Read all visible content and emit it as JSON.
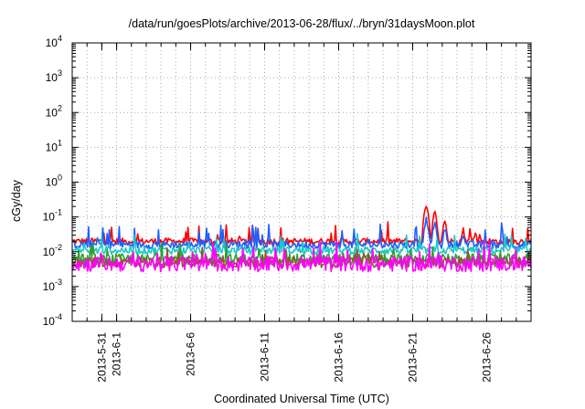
{
  "chart_data": {
    "type": "line",
    "title": "/data/run/goesPlots/archive/2013-06-28/flux/../bryn/31daysMoon.plot",
    "xlabel": "Coordinated Universal Time (UTC)",
    "ylabel": "cGy/day",
    "yscale": "log",
    "ylim": [
      0.0001,
      10000
    ],
    "xlim": [
      "2013-05-29",
      "2013-06-29"
    ],
    "grid": true,
    "legend": "none",
    "y_ticks": [
      {
        "base": "10",
        "exp": "-4",
        "value": 0.0001
      },
      {
        "base": "10",
        "exp": "-3",
        "value": 0.001
      },
      {
        "base": "10",
        "exp": "-2",
        "value": 0.01
      },
      {
        "base": "10",
        "exp": "-1",
        "value": 0.1
      },
      {
        "base": "10",
        "exp": "0",
        "value": 1
      },
      {
        "base": "10",
        "exp": "1",
        "value": 10
      },
      {
        "base": "10",
        "exp": "2",
        "value": 100
      },
      {
        "base": "10",
        "exp": "3",
        "value": 1000
      },
      {
        "base": "10",
        "exp": "4",
        "value": 10000
      }
    ],
    "x_ticks": [
      {
        "label": "2013-5-31",
        "date": "2013-05-31"
      },
      {
        "label": "2013-6-1",
        "date": "2013-06-01"
      },
      {
        "label": "2013-6-6",
        "date": "2013-06-06"
      },
      {
        "label": "2013-6-11",
        "date": "2013-06-11"
      },
      {
        "label": "2013-6-16",
        "date": "2013-06-16"
      },
      {
        "label": "2013-6-21",
        "date": "2013-06-21"
      },
      {
        "label": "2013-6-26",
        "date": "2013-06-26"
      }
    ],
    "series": [
      {
        "color": "#ff0000",
        "baseline": 0.02,
        "spread": 0.18,
        "spike_chance": 0.06,
        "spike_factor": 2.2,
        "peaks": [
          [
            "2013-06-21T22:00",
            0.28
          ],
          [
            "2013-06-22T12:00",
            0.16
          ],
          [
            "2013-06-23T04:00",
            0.09
          ],
          [
            "2013-06-24T10:00",
            0.05
          ],
          [
            "2013-06-25T06:00",
            0.04
          ]
        ]
      },
      {
        "color": "#1f5fff",
        "baseline": 0.016,
        "spread": 0.22,
        "spike_chance": 0.08,
        "spike_factor": 2.5,
        "peaks": [
          [
            "2013-06-21T22:00",
            0.11
          ],
          [
            "2013-06-22T12:00",
            0.08
          ],
          [
            "2013-06-23T04:00",
            0.05
          ],
          [
            "2013-06-24T10:00",
            0.04
          ]
        ]
      },
      {
        "color": "#19c8c8",
        "baseline": 0.011,
        "spread": 0.22,
        "spike_chance": 0.06,
        "spike_factor": 2.0,
        "peaks": []
      },
      {
        "color": "#2aa02a",
        "baseline": 0.006,
        "spread": 0.32,
        "spike_chance": 0.05,
        "spike_factor": 2.0,
        "peaks": []
      },
      {
        "color": "#8b5a2b",
        "baseline": 0.005,
        "spread": 0.3,
        "spike_chance": 0.04,
        "spike_factor": 1.8,
        "peaks": []
      },
      {
        "color": "#ff00ff",
        "baseline": 0.0045,
        "spread": 0.45,
        "spike_chance": 0.07,
        "spike_factor": 2.2,
        "peaks": []
      }
    ]
  }
}
